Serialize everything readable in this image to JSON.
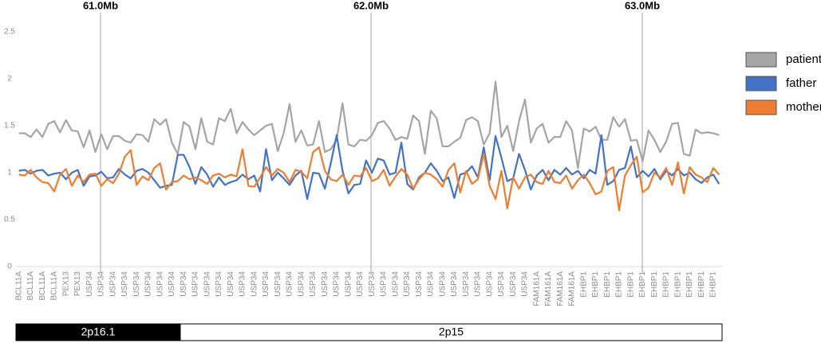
{
  "chart_data": {
    "type": "line",
    "categories": [
      "BCL11A",
      null,
      "BCL11A",
      null,
      "BCL11A",
      null,
      "BCL11A",
      null,
      "PEX13",
      null,
      "PEX13",
      null,
      "USP34",
      null,
      "USP34",
      null,
      "USP34",
      null,
      "USP34",
      null,
      "USP34",
      null,
      "USP34",
      null,
      "USP34",
      null,
      "USP34",
      null,
      "USP34",
      null,
      "USP34",
      null,
      "USP34",
      null,
      "USP34",
      null,
      "USP34",
      null,
      "USP34",
      null,
      "USP34",
      null,
      "USP34",
      null,
      "USP34",
      null,
      "USP34",
      null,
      "USP34",
      null,
      "USP34",
      null,
      "USP34",
      null,
      "USP34",
      null,
      "USP34",
      null,
      "USP34",
      null,
      "USP34",
      null,
      "USP34",
      null,
      "USP34",
      null,
      "USP34",
      null,
      "USP34",
      null,
      "USP34",
      null,
      "USP34",
      null,
      "USP34",
      null,
      "USP34",
      null,
      "USP34",
      null,
      "USP34",
      null,
      "USP34",
      null,
      "USP34",
      null,
      "USP34",
      null,
      "FAM161A",
      null,
      "FAM161A",
      null,
      "FAM161A",
      null,
      "FAM161A",
      null,
      "EHBP1",
      null,
      "EHBP1",
      null,
      "EHBP1",
      null,
      "EHBP1",
      null,
      "EHBP1",
      null,
      "EHBP1",
      null,
      "EHBP1",
      null,
      "EHBP1",
      null,
      "EHBP1",
      null,
      "EHBP1",
      null,
      "EHBP1",
      null,
      "EHBP1",
      null
    ],
    "series": [
      {
        "name": "patient",
        "color": "#a5a5a5",
        "values": [
          1.42,
          1.42,
          1.38,
          1.46,
          1.38,
          1.52,
          1.55,
          1.43,
          1.56,
          1.45,
          1.44,
          1.27,
          1.45,
          1.22,
          1.41,
          1.25,
          1.39,
          1.39,
          1.34,
          1.32,
          1.41,
          1.4,
          1.33,
          1.57,
          1.51,
          1.57,
          1.32,
          1.2,
          1.54,
          1.49,
          1.25,
          1.58,
          1.33,
          1.3,
          1.58,
          1.55,
          1.68,
          1.42,
          1.54,
          1.46,
          1.4,
          1.45,
          1.5,
          1.52,
          1.23,
          1.42,
          1.73,
          1.33,
          1.45,
          1.29,
          1.3,
          1.55,
          1.22,
          1.25,
          1.35,
          1.74,
          1.3,
          1.28,
          1.35,
          1.34,
          1.4,
          1.53,
          1.55,
          1.47,
          1.35,
          1.38,
          1.36,
          1.61,
          1.55,
          1.2,
          1.66,
          1.58,
          1.28,
          1.28,
          1.33,
          1.37,
          1.56,
          1.59,
          1.55,
          1.3,
          1.42,
          1.97,
          1.38,
          1.5,
          1.23,
          1.55,
          1.78,
          1.32,
          1.47,
          1.52,
          1.32,
          1.38,
          1.38,
          1.55,
          1.45,
          1.05,
          1.47,
          1.44,
          1.49,
          1.35,
          1.35,
          1.59,
          1.49,
          1.57,
          1.34,
          1.35,
          1.12,
          1.45,
          1.35,
          1.22,
          1.33,
          1.52,
          1.53,
          1.2,
          1.18,
          1.46,
          1.42,
          1.43,
          1.42,
          1.4
        ]
      },
      {
        "name": "father",
        "color": "#4472c4",
        "values": [
          1.02,
          1.03,
          0.99,
          1.02,
          1.03,
          0.97,
          0.99,
          1.0,
          0.93,
          1.0,
          1.03,
          0.86,
          0.96,
          0.97,
          1.01,
          0.94,
          0.95,
          1.04,
          0.98,
          0.94,
          1.02,
          1.04,
          1.0,
          0.92,
          0.84,
          0.86,
          0.87,
          1.19,
          1.19,
          1.06,
          0.88,
          1.06,
          0.98,
          0.85,
          0.95,
          0.87,
          0.9,
          0.92,
          0.98,
          0.93,
          0.97,
          0.8,
          1.25,
          0.92,
          1.0,
          0.94,
          0.87,
          0.97,
          1.02,
          0.72,
          1.0,
          0.99,
          0.83,
          1.1,
          1.4,
          1.02,
          0.78,
          0.87,
          0.88,
          1.13,
          1.0,
          1.15,
          1.13,
          0.98,
          1.0,
          1.32,
          0.88,
          0.82,
          0.95,
          1.0,
          1.1,
          1.02,
          0.91,
          0.95,
          0.73,
          0.98,
          1.0,
          1.07,
          0.95,
          1.27,
          0.92,
          1.39,
          1.16,
          0.91,
          0.94,
          1.2,
          1.03,
          0.82,
          0.97,
          1.03,
          0.92,
          1.03,
          0.98,
          1.05,
          0.98,
          1.02,
          0.94,
          1.03,
          0.99,
          1.4,
          0.87,
          0.91,
          1.03,
          1.05,
          1.28,
          0.95,
          1.02,
          0.96,
          1.04,
          0.93,
          1.02,
          0.97,
          1.04,
          0.97,
          1.0,
          0.93,
          0.89,
          0.95,
          0.98,
          0.88
        ]
      },
      {
        "name": "mother",
        "color": "#ed7d31",
        "values": [
          0.98,
          0.97,
          1.03,
          0.95,
          0.9,
          0.89,
          0.8,
          0.98,
          1.04,
          0.86,
          0.97,
          0.9,
          0.98,
          0.99,
          0.86,
          0.93,
          0.89,
          0.99,
          1.17,
          1.24,
          0.87,
          0.96,
          0.92,
          1.05,
          1.1,
          0.82,
          0.9,
          0.91,
          0.97,
          0.93,
          0.95,
          0.92,
          0.88,
          0.97,
          0.99,
          0.95,
          0.98,
          0.96,
          1.25,
          0.86,
          0.85,
          0.95,
          1.06,
          0.97,
          1.04,
          1.0,
          0.9,
          1.03,
          1.01,
          0.94,
          1.22,
          1.27,
          1.02,
          0.93,
          0.91,
          0.98,
          0.87,
          0.97,
          0.96,
          1.05,
          0.91,
          0.94,
          1.03,
          0.86,
          0.96,
          1.04,
          0.98,
          0.83,
          0.93,
          1.0,
          0.98,
          0.93,
          0.85,
          1.03,
          1.1,
          0.79,
          1.02,
          0.88,
          0.93,
          1.2,
          0.86,
          0.72,
          1.02,
          0.62,
          0.95,
          0.83,
          0.95,
          0.98,
          0.9,
          0.88,
          1.02,
          0.9,
          0.89,
          0.97,
          0.83,
          0.92,
          0.98,
          0.89,
          0.77,
          0.8,
          1.02,
          1.06,
          0.6,
          0.97,
          1.08,
          1.17,
          0.79,
          0.84,
          1.0,
          0.95,
          1.05,
          0.87,
          1.11,
          0.78,
          1.06,
          0.98,
          0.95,
          0.9,
          1.05,
          0.98
        ]
      }
    ],
    "ylim": [
      0,
      2.5
    ],
    "yticks": [
      0,
      0.5,
      1,
      1.5,
      2,
      2.5
    ],
    "markers": [
      "61.0Mb",
      "62.0Mb",
      "63.0Mb"
    ],
    "bands": [
      "2p16.1",
      "2p15"
    ],
    "legend": "right"
  }
}
